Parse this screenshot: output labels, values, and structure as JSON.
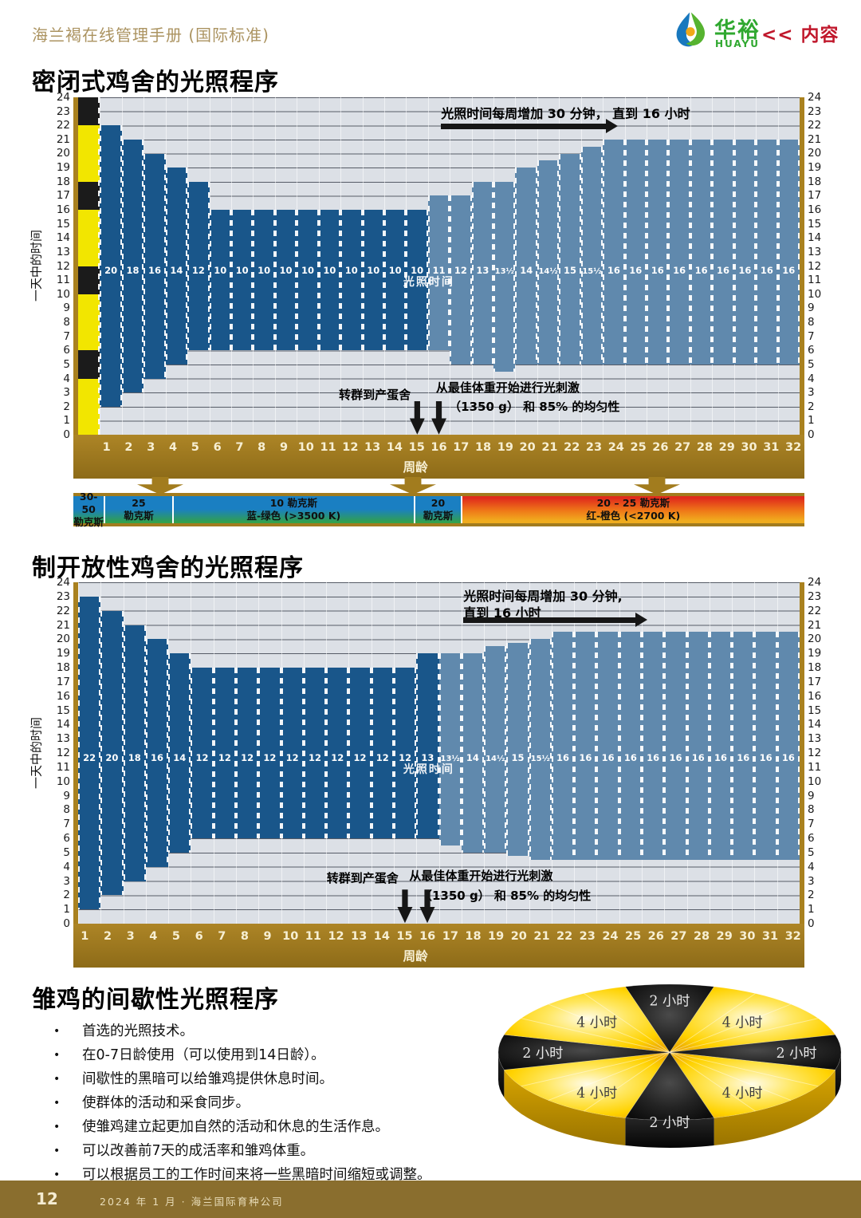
{
  "header": {
    "manual_title": "海兰褐在线管理手册 (国际标准)",
    "brand_cn": "华裕",
    "brand_en": "HUAYU",
    "nav_link": "<< 内容"
  },
  "sections": {
    "closed_house_title": "密闭式鸡舍的光照程序",
    "open_house_title": "制开放性鸡舍的光照程序",
    "intermittent_title": "雏鸡的间歇性光照程序"
  },
  "labels": {
    "light_time": "光照时间",
    "transfer": "转群到产蛋舍",
    "stim_line1": "从最佳体重开始进行光刺激",
    "stim_line2": "（1350 g） 和 85% 的均匀性"
  },
  "chart_data": [
    {
      "id": "closed_house",
      "type": "bar",
      "title": "密闭式鸡舍的光照程序",
      "ylabel": "一天中的时间",
      "xlabel": "周龄",
      "ylim": [
        0,
        24
      ],
      "yticks": [
        0,
        1,
        2,
        3,
        4,
        5,
        6,
        7,
        8,
        9,
        10,
        11,
        12,
        13,
        14,
        15,
        16,
        17,
        18,
        19,
        20,
        21,
        22,
        23,
        24
      ],
      "x": [
        1,
        2,
        3,
        4,
        5,
        6,
        7,
        8,
        9,
        10,
        11,
        12,
        13,
        14,
        15,
        16,
        17,
        18,
        19,
        20,
        21,
        22,
        23,
        24,
        25,
        26,
        27,
        28,
        29,
        30,
        31,
        32
      ],
      "top_annotation": [
        "光照时间每周增加 30 分钟， 直到 16 小时"
      ],
      "intermittent_column": {
        "segments": [
          {
            "from": 0,
            "to": 4,
            "state": "light"
          },
          {
            "from": 4,
            "to": 6,
            "state": "dark"
          },
          {
            "from": 6,
            "to": 10,
            "state": "light"
          },
          {
            "from": 10,
            "to": 12,
            "state": "dark"
          },
          {
            "from": 12,
            "to": 16,
            "state": "light"
          },
          {
            "from": 16,
            "to": 18,
            "state": "dark"
          },
          {
            "from": 18,
            "to": 22,
            "state": "light"
          },
          {
            "from": 22,
            "to": 24,
            "state": "dark"
          }
        ]
      },
      "bars": [
        {
          "week": 1,
          "label": "20",
          "hours": 20,
          "from": 2,
          "to": 22,
          "shade": "dark"
        },
        {
          "week": 2,
          "label": "18",
          "hours": 18,
          "from": 3,
          "to": 21,
          "shade": "dark"
        },
        {
          "week": 3,
          "label": "16",
          "hours": 16,
          "from": 4,
          "to": 20,
          "shade": "dark"
        },
        {
          "week": 4,
          "label": "14",
          "hours": 14,
          "from": 5,
          "to": 19,
          "shade": "dark"
        },
        {
          "week": 5,
          "label": "12",
          "hours": 12,
          "from": 6,
          "to": 18,
          "shade": "dark"
        },
        {
          "week": 6,
          "label": "10",
          "hours": 10,
          "from": 6,
          "to": 16,
          "shade": "dark"
        },
        {
          "week": 7,
          "label": "10",
          "hours": 10,
          "from": 6,
          "to": 16,
          "shade": "dark"
        },
        {
          "week": 8,
          "label": "10",
          "hours": 10,
          "from": 6,
          "to": 16,
          "shade": "dark"
        },
        {
          "week": 9,
          "label": "10",
          "hours": 10,
          "from": 6,
          "to": 16,
          "shade": "dark"
        },
        {
          "week": 10,
          "label": "10",
          "hours": 10,
          "from": 6,
          "to": 16,
          "shade": "dark"
        },
        {
          "week": 11,
          "label": "10",
          "hours": 10,
          "from": 6,
          "to": 16,
          "shade": "dark"
        },
        {
          "week": 12,
          "label": "10",
          "hours": 10,
          "from": 6,
          "to": 16,
          "shade": "dark"
        },
        {
          "week": 13,
          "label": "10",
          "hours": 10,
          "from": 6,
          "to": 16,
          "shade": "dark"
        },
        {
          "week": 14,
          "label": "10",
          "hours": 10,
          "from": 6,
          "to": 16,
          "shade": "dark"
        },
        {
          "week": 15,
          "label": "10",
          "hours": 10,
          "from": 6,
          "to": 16,
          "shade": "dark"
        },
        {
          "week": 16,
          "label": "11",
          "hours": 11,
          "from": 6,
          "to": 17,
          "shade": "light"
        },
        {
          "week": 17,
          "label": "12",
          "hours": 12,
          "from": 5,
          "to": 17,
          "shade": "light"
        },
        {
          "week": 18,
          "label": "13",
          "hours": 13,
          "from": 5,
          "to": 18,
          "shade": "light"
        },
        {
          "week": 19,
          "label": "13½",
          "hours": 13.5,
          "from": 4.5,
          "to": 18,
          "shade": "light"
        },
        {
          "week": 20,
          "label": "14",
          "hours": 14,
          "from": 5,
          "to": 19,
          "shade": "light"
        },
        {
          "week": 21,
          "label": "14½",
          "hours": 14.5,
          "from": 5,
          "to": 19.5,
          "shade": "light"
        },
        {
          "week": 22,
          "label": "15",
          "hours": 15,
          "from": 5,
          "to": 20,
          "shade": "light"
        },
        {
          "week": 23,
          "label": "15½",
          "hours": 15.5,
          "from": 5,
          "to": 20.5,
          "shade": "light"
        },
        {
          "week": 24,
          "label": "16",
          "hours": 16,
          "from": 5,
          "to": 21,
          "shade": "light"
        },
        {
          "week": 25,
          "label": "16",
          "hours": 16,
          "from": 5,
          "to": 21,
          "shade": "light"
        },
        {
          "week": 26,
          "label": "16",
          "hours": 16,
          "from": 5,
          "to": 21,
          "shade": "light"
        },
        {
          "week": 27,
          "label": "16",
          "hours": 16,
          "from": 5,
          "to": 21,
          "shade": "light"
        },
        {
          "week": 28,
          "label": "16",
          "hours": 16,
          "from": 5,
          "to": 21,
          "shade": "light"
        },
        {
          "week": 29,
          "label": "16",
          "hours": 16,
          "from": 5,
          "to": 21,
          "shade": "light"
        },
        {
          "week": 30,
          "label": "16",
          "hours": 16,
          "from": 5,
          "to": 21,
          "shade": "light"
        },
        {
          "week": 31,
          "label": "16",
          "hours": 16,
          "from": 5,
          "to": 21,
          "shade": "light"
        },
        {
          "week": 32,
          "label": "16",
          "hours": 16,
          "from": 5,
          "to": 21,
          "shade": "light"
        }
      ]
    },
    {
      "id": "open_house",
      "type": "bar",
      "title": "制开放性鸡舍的光照程序",
      "ylabel": "一天中的时间",
      "xlabel": "周龄",
      "ylim": [
        0,
        24
      ],
      "yticks": [
        0,
        1,
        2,
        3,
        4,
        5,
        6,
        7,
        8,
        9,
        10,
        11,
        12,
        13,
        14,
        15,
        16,
        17,
        18,
        19,
        20,
        21,
        22,
        23,
        24
      ],
      "x": [
        1,
        2,
        3,
        4,
        5,
        6,
        7,
        8,
        9,
        10,
        11,
        12,
        13,
        14,
        15,
        16,
        17,
        18,
        19,
        20,
        21,
        22,
        23,
        24,
        25,
        26,
        27,
        28,
        29,
        30,
        31,
        32
      ],
      "top_annotation": [
        "光照时间每周增加 30 分钟,",
        "直到 16 小时"
      ],
      "bars": [
        {
          "week": 1,
          "label": "22",
          "hours": 22,
          "from": 1,
          "to": 23,
          "shade": "dark"
        },
        {
          "week": 2,
          "label": "20",
          "hours": 20,
          "from": 2,
          "to": 22,
          "shade": "dark"
        },
        {
          "week": 3,
          "label": "18",
          "hours": 18,
          "from": 3,
          "to": 21,
          "shade": "dark"
        },
        {
          "week": 4,
          "label": "16",
          "hours": 16,
          "from": 4,
          "to": 20,
          "shade": "dark"
        },
        {
          "week": 5,
          "label": "14",
          "hours": 14,
          "from": 5,
          "to": 19,
          "shade": "dark"
        },
        {
          "week": 6,
          "label": "12",
          "hours": 12,
          "from": 6,
          "to": 18,
          "shade": "dark"
        },
        {
          "week": 7,
          "label": "12",
          "hours": 12,
          "from": 6,
          "to": 18,
          "shade": "dark"
        },
        {
          "week": 8,
          "label": "12",
          "hours": 12,
          "from": 6,
          "to": 18,
          "shade": "dark"
        },
        {
          "week": 9,
          "label": "12",
          "hours": 12,
          "from": 6,
          "to": 18,
          "shade": "dark"
        },
        {
          "week": 10,
          "label": "12",
          "hours": 12,
          "from": 6,
          "to": 18,
          "shade": "dark"
        },
        {
          "week": 11,
          "label": "12",
          "hours": 12,
          "from": 6,
          "to": 18,
          "shade": "dark"
        },
        {
          "week": 12,
          "label": "12",
          "hours": 12,
          "from": 6,
          "to": 18,
          "shade": "dark"
        },
        {
          "week": 13,
          "label": "12",
          "hours": 12,
          "from": 6,
          "to": 18,
          "shade": "dark"
        },
        {
          "week": 14,
          "label": "12",
          "hours": 12,
          "from": 6,
          "to": 18,
          "shade": "dark"
        },
        {
          "week": 15,
          "label": "12",
          "hours": 12,
          "from": 6,
          "to": 18,
          "shade": "dark"
        },
        {
          "week": 16,
          "label": "13",
          "hours": 13,
          "from": 6,
          "to": 19,
          "shade": "dark"
        },
        {
          "week": 17,
          "label": "13½",
          "hours": 13.5,
          "from": 5.5,
          "to": 19,
          "shade": "light"
        },
        {
          "week": 18,
          "label": "14",
          "hours": 14,
          "from": 5,
          "to": 19,
          "shade": "light"
        },
        {
          "week": 19,
          "label": "14½",
          "hours": 14.5,
          "from": 5,
          "to": 19.5,
          "shade": "light"
        },
        {
          "week": 20,
          "label": "15",
          "hours": 15,
          "from": 4.75,
          "to": 19.75,
          "shade": "light"
        },
        {
          "week": 21,
          "label": "15½",
          "hours": 15.5,
          "from": 4.5,
          "to": 20,
          "shade": "light"
        },
        {
          "week": 22,
          "label": "16",
          "hours": 16,
          "from": 4.5,
          "to": 20.5,
          "shade": "light"
        },
        {
          "week": 23,
          "label": "16",
          "hours": 16,
          "from": 4.5,
          "to": 20.5,
          "shade": "light"
        },
        {
          "week": 24,
          "label": "16",
          "hours": 16,
          "from": 4.5,
          "to": 20.5,
          "shade": "light"
        },
        {
          "week": 25,
          "label": "16",
          "hours": 16,
          "from": 4.5,
          "to": 20.5,
          "shade": "light"
        },
        {
          "week": 26,
          "label": "16",
          "hours": 16,
          "from": 4.5,
          "to": 20.5,
          "shade": "light"
        },
        {
          "week": 27,
          "label": "16",
          "hours": 16,
          "from": 4.5,
          "to": 20.5,
          "shade": "light"
        },
        {
          "week": 28,
          "label": "16",
          "hours": 16,
          "from": 4.5,
          "to": 20.5,
          "shade": "light"
        },
        {
          "week": 29,
          "label": "16",
          "hours": 16,
          "from": 4.5,
          "to": 20.5,
          "shade": "light"
        },
        {
          "week": 30,
          "label": "16",
          "hours": 16,
          "from": 4.5,
          "to": 20.5,
          "shade": "light"
        },
        {
          "week": 31,
          "label": "16",
          "hours": 16,
          "from": 4.5,
          "to": 20.5,
          "shade": "light"
        },
        {
          "week": 32,
          "label": "16",
          "hours": 16,
          "from": 4.5,
          "to": 20.5,
          "shade": "light"
        }
      ]
    },
    {
      "id": "intermittent_pie",
      "type": "pie",
      "title": "雏鸡的间歇性光照程序",
      "total_hours": 24,
      "slices": [
        {
          "label": "2 小时",
          "hours": 2,
          "state": "dark"
        },
        {
          "label": "4 小时",
          "hours": 4,
          "state": "light"
        },
        {
          "label": "2 小时",
          "hours": 2,
          "state": "dark"
        },
        {
          "label": "4 小时",
          "hours": 4,
          "state": "light"
        },
        {
          "label": "2 小时",
          "hours": 2,
          "state": "dark"
        },
        {
          "label": "4 小时",
          "hours": 4,
          "state": "light"
        },
        {
          "label": "2 小时",
          "hours": 2,
          "state": "dark"
        },
        {
          "label": "4 小时",
          "hours": 4,
          "state": "light"
        }
      ]
    }
  ],
  "lux_bar": {
    "segments": [
      {
        "line1": "30-50",
        "line2": "勒克斯",
        "width_pct": 4.4,
        "palette": "blue-green"
      },
      {
        "line1": "25",
        "line2": "勒克斯",
        "width_pct": 9.3,
        "palette": "blue-green"
      },
      {
        "line1": "10 勒克斯",
        "line2": "蓝-绿色 (>3500 K)",
        "width_pct": 33.1,
        "palette": "blue-green"
      },
      {
        "line1": "20",
        "line2": "勒克斯",
        "width_pct": 6.4,
        "palette": "blue-green"
      },
      {
        "line1": "20 – 25 勒克斯",
        "line2": "红-橙色 (<2700 K)",
        "width_pct": 46.8,
        "palette": "red-orange"
      }
    ]
  },
  "bullets": [
    "首选的光照技术。",
    "在0-7日龄使用（可以使用到14日龄）。",
    "间歇性的黑暗可以给雏鸡提供休息时间。",
    "使群体的活动和采食同步。",
    "使雏鸡建立起更加自然的活动和休息的生活作息。",
    "可以改善前7天的成活率和雏鸡体重。",
    "可以根据员工的工作时间来将一些黑暗时间缩短或调整。"
  ],
  "footer": {
    "page_number": "12",
    "date_company": "2024 年 1 月 · 海兰国际育种公司"
  },
  "colors": {
    "dark_bar": "#19568a",
    "light_bar": "#6089ad",
    "gold": "#a9811f",
    "plot_bg": "#dce0e6",
    "intermittent_light": "#f2e600",
    "intermittent_dark": "#1b1b1b",
    "nav_red": "#c0182c",
    "brand_green": "#2fa82f",
    "header_tan": "#ab9360",
    "footer_bg": "#8a6e2e"
  }
}
